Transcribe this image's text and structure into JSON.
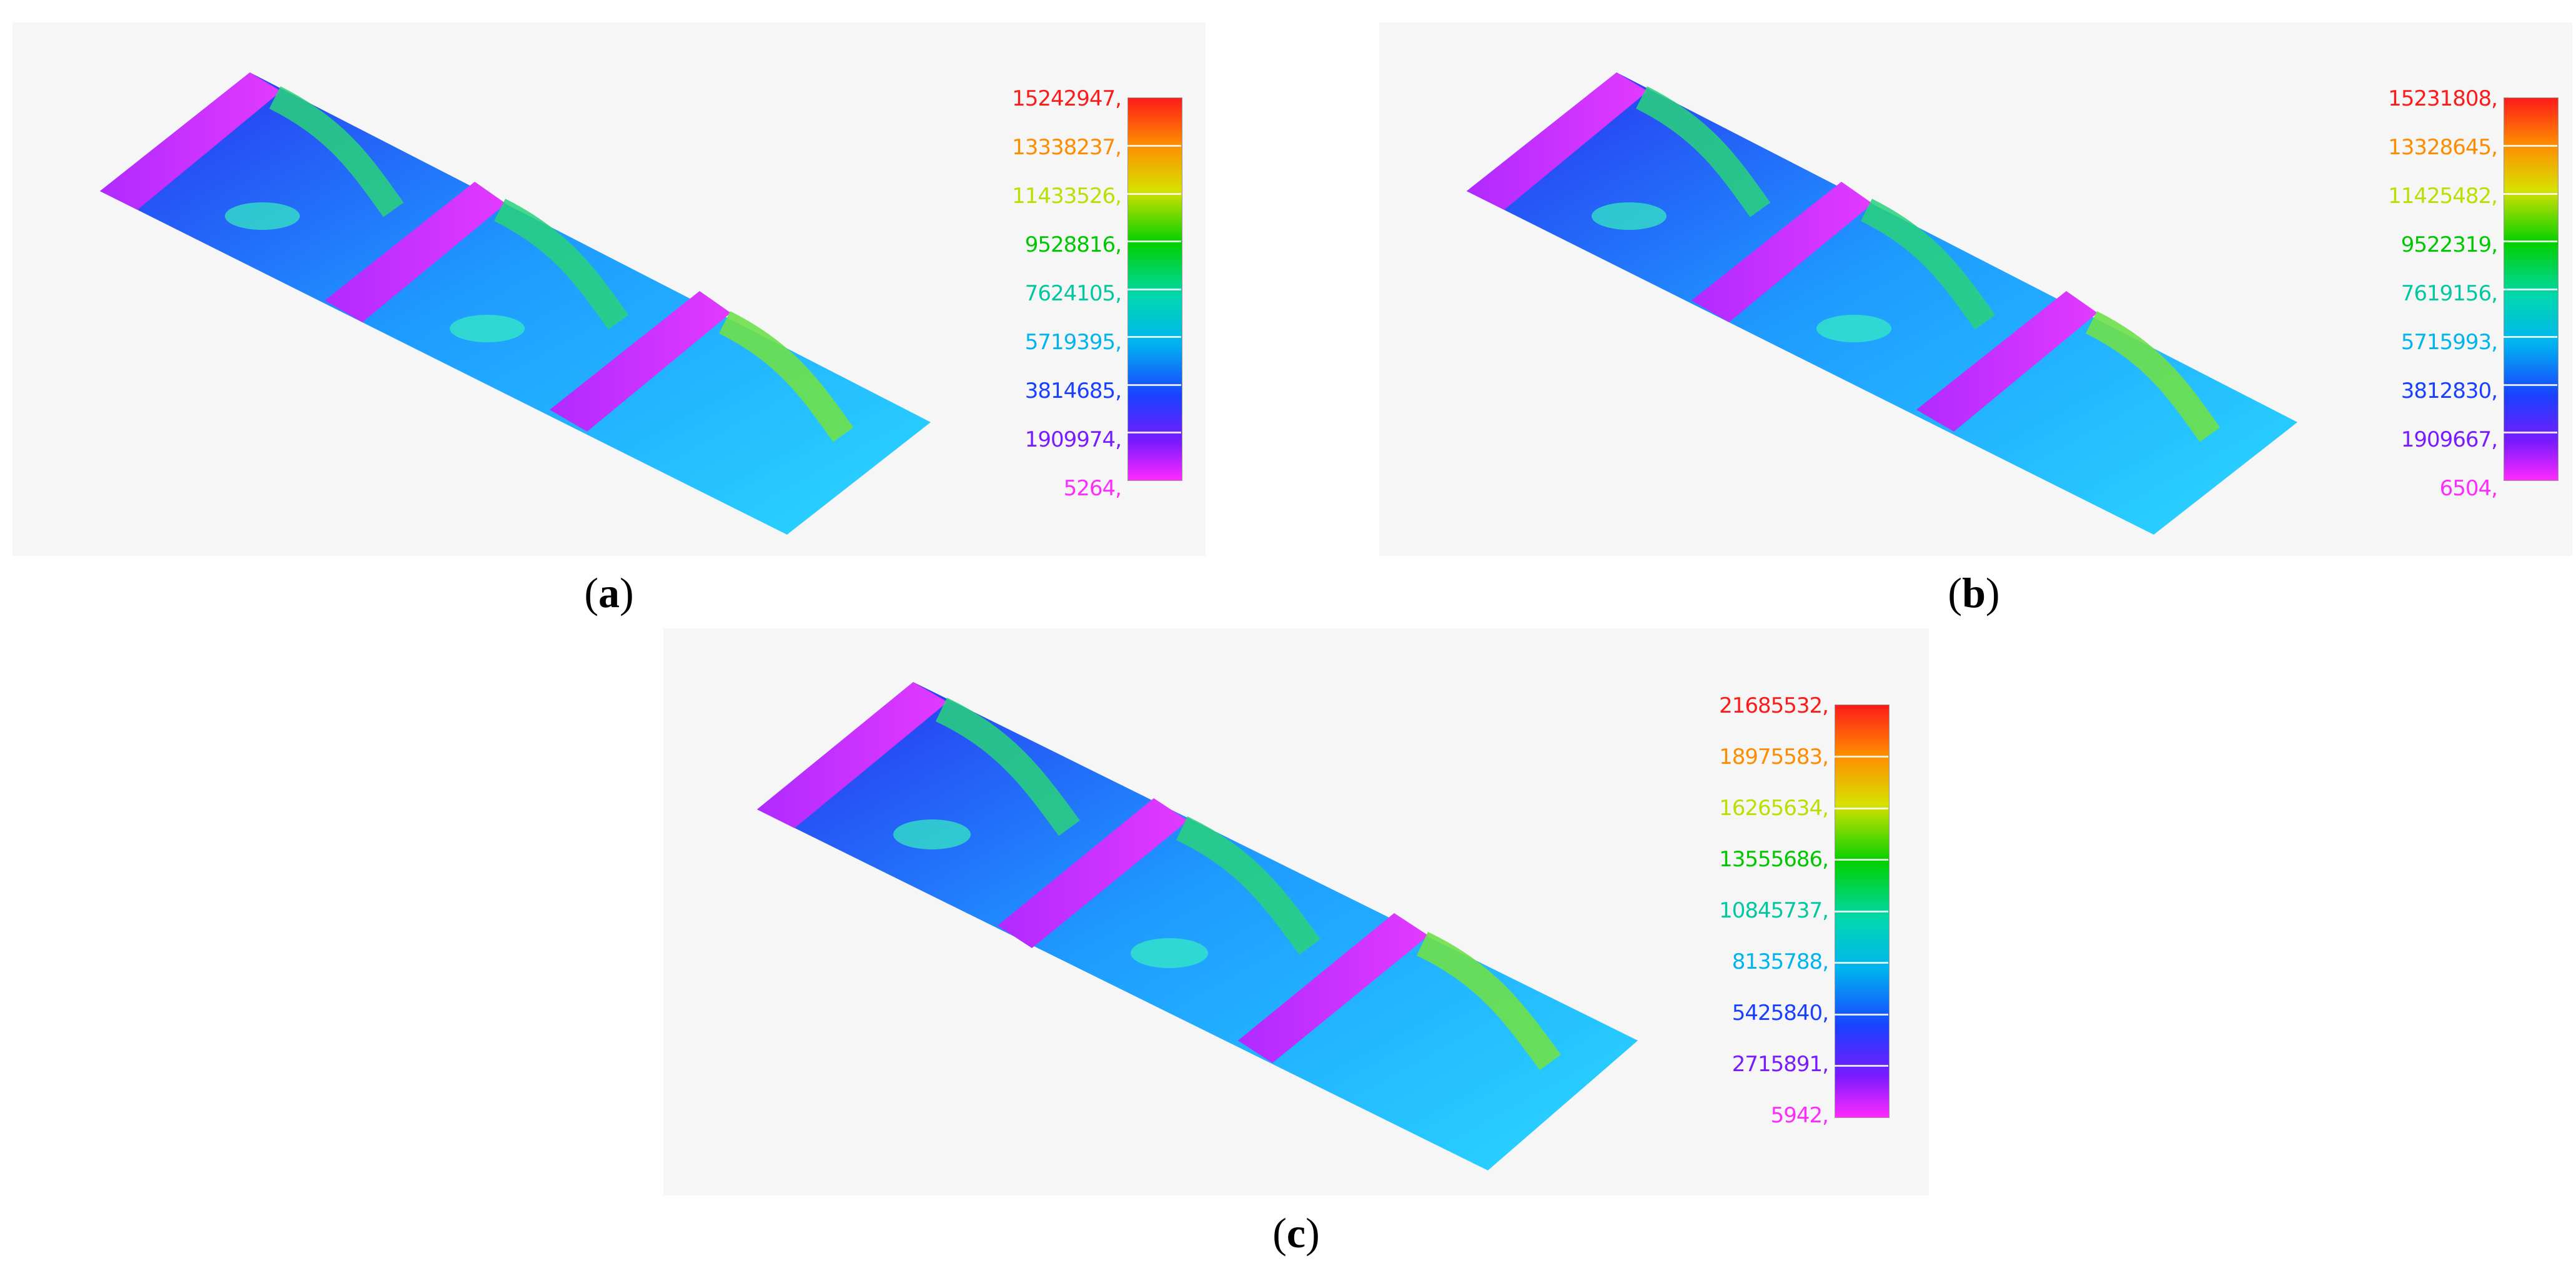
{
  "panels": [
    {
      "caption_letter": "a",
      "legend": {
        "labels": [
          "15242947,",
          "13338237,",
          "11433526,",
          "9528816,",
          "7624105,",
          "5719395,",
          "3814685,",
          "1909974,",
          "5264,"
        ]
      }
    },
    {
      "caption_letter": "b",
      "legend": {
        "labels": [
          "15231808,",
          "13328645,",
          "11425482,",
          "9522319,",
          "7619156,",
          "5715993,",
          "3812830,",
          "1909667,",
          "6504,"
        ]
      }
    },
    {
      "caption_letter": "c",
      "legend": {
        "labels": [
          "21685532,",
          "18975583,",
          "16265634,",
          "13555686,",
          "10845737,",
          "8135788,",
          "5425840,",
          "2715891,",
          "5942,"
        ]
      }
    }
  ],
  "legend_colors": [
    "#ff1a1a",
    "#ff8c00",
    "#b8e000",
    "#00c800",
    "#00c8a0",
    "#00b4f0",
    "#1a40ff",
    "#7a1aff",
    "#ff2aff"
  ]
}
